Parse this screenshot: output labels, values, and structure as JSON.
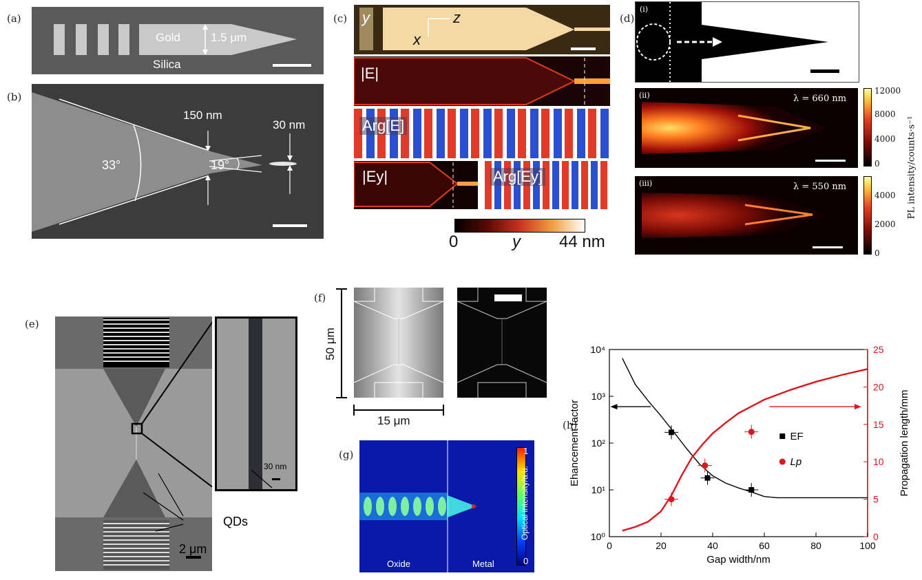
{
  "panels": {
    "a": "(a)",
    "b": "(b)",
    "c": "(c)",
    "d": "(d)",
    "e": "(e)",
    "f": "(f)",
    "g": "(g)",
    "h": "(h)"
  },
  "a": {
    "gold": "Gold",
    "silica": "Silica",
    "width": "1.5 μm"
  },
  "b": {
    "w150": "150 nm",
    "w30": "30 nm",
    "ang33": "33°",
    "ang19": "19°"
  },
  "c": {
    "y": "y",
    "z": "z",
    "x": "x",
    "absE": "|E|",
    "argE": "Arg[E]",
    "absEy": "|Ey|",
    "argEy": "Arg[Ey]",
    "cb_min": "0",
    "cb_mid": "y",
    "cb_max": "44 nm"
  },
  "d": {
    "i": "(i)",
    "ii": "(ii)",
    "iii": "(iii)",
    "lam1": "λ = 660 nm",
    "lam2": "λ = 550 nm",
    "cb1": [
      "12000",
      "8000",
      "4000",
      "0"
    ],
    "cb2": [
      "4000",
      "2000",
      "0"
    ],
    "cb_label": "PL intensity/counts·s⁻¹"
  },
  "e": {
    "scale1": "30 nm",
    "scale2": "2 μm",
    "qds": "QDs"
  },
  "f": {
    "v": "50 μm",
    "h": "15 μm"
  },
  "g": {
    "oxide": "Oxide",
    "metal": "Metal",
    "cb_label": "Optical intensity/a.u.",
    "cb_max": "1",
    "cb_min": "0"
  },
  "chart_data": {
    "type": "line",
    "xlabel": "Gap width/nm",
    "ylabel": "Ehancement factor",
    "y2label": "Propagation length/mm",
    "xlim": [
      0,
      100
    ],
    "ylim": [
      1,
      10000
    ],
    "y_scale": "log",
    "y2lim": [
      0,
      25
    ],
    "xticks": [
      "0",
      "20",
      "40",
      "60",
      "80",
      "100"
    ],
    "yticks": [
      "10⁰",
      "10¹",
      "10²",
      "10³",
      "10⁴"
    ],
    "y2ticks": [
      "0",
      "5",
      "10",
      "15",
      "20",
      "25"
    ],
    "legend_position": "right",
    "series": [
      {
        "name": "EF",
        "axis": "left",
        "color": "#000000",
        "points": [
          {
            "x": 24,
            "y": 170
          },
          {
            "x": 38,
            "y": 18
          },
          {
            "x": 55,
            "y": 10
          }
        ],
        "curve": [
          [
            5,
            6500
          ],
          [
            10,
            1800
          ],
          [
            15,
            800
          ],
          [
            20,
            380
          ],
          [
            25,
            170
          ],
          [
            30,
            75
          ],
          [
            35,
            35
          ],
          [
            40,
            20
          ],
          [
            45,
            14
          ],
          [
            50,
            11
          ],
          [
            55,
            9
          ],
          [
            60,
            7.2
          ],
          [
            65,
            6.8
          ],
          [
            70,
            6.8
          ],
          [
            80,
            6.8
          ],
          [
            90,
            6.8
          ],
          [
            100,
            6.8
          ]
        ]
      },
      {
        "name": "Lp",
        "axis": "right",
        "color": "#e0141e",
        "points": [
          {
            "x": 24,
            "y": 5
          },
          {
            "x": 37,
            "y": 9.5
          },
          {
            "x": 55,
            "y": 14
          }
        ],
        "curve": [
          [
            5,
            0.8
          ],
          [
            10,
            1.3
          ],
          [
            15,
            2
          ],
          [
            20,
            3.4
          ],
          [
            24,
            5.5
          ],
          [
            28,
            8.2
          ],
          [
            32,
            10.6
          ],
          [
            36,
            12.3
          ],
          [
            40,
            13.8
          ],
          [
            45,
            15.2
          ],
          [
            50,
            16.5
          ],
          [
            55,
            17.4
          ],
          [
            60,
            18.3
          ],
          [
            70,
            19.6
          ],
          [
            80,
            20.7
          ],
          [
            90,
            21.6
          ],
          [
            100,
            22.4
          ]
        ]
      }
    ],
    "legend": [
      "EF",
      "Lp"
    ]
  }
}
